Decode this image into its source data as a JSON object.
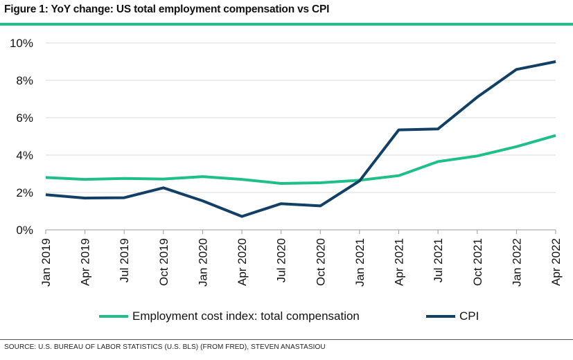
{
  "title": "Figure 1: YoY change: US total employment compensation vs CPI",
  "source": "SOURCE: U.S. BUREAU OF LABOR STATISTICS (U.S. BLS) (FROM FRED), STEVEN ANASTASIOU",
  "colors": {
    "accent": "#1fbf8a",
    "eci": "#1fbf8a",
    "cpi": "#123f66",
    "grid": "#d9d9d9"
  },
  "chart_data": {
    "type": "line",
    "title": "",
    "xlabel": "",
    "ylabel": "",
    "ylim": [
      0,
      10
    ],
    "yticks": [
      "0%",
      "2%",
      "4%",
      "6%",
      "8%",
      "10%"
    ],
    "grid": true,
    "legend": "bottom",
    "x": [
      "Jan 2019",
      "Apr 2019",
      "Jul 2019",
      "Oct 2019",
      "Jan 2020",
      "Apr 2020",
      "Jul 2020",
      "Oct 2020",
      "Jan 2021",
      "Apr 2021",
      "Jul 2021",
      "Oct 2021",
      "Jan 2022",
      "Apr 2022"
    ],
    "series": [
      {
        "name": "Employment cost index: total compensation",
        "color": "#1fbf8a",
        "values": [
          2.8,
          2.7,
          2.75,
          2.72,
          2.85,
          2.7,
          2.48,
          2.52,
          2.65,
          2.9,
          3.65,
          3.95,
          4.45,
          5.05
        ]
      },
      {
        "name": "CPI",
        "color": "#123f66",
        "values": [
          1.88,
          1.7,
          1.72,
          2.25,
          1.55,
          0.72,
          1.4,
          1.28,
          2.62,
          5.35,
          5.4,
          7.1,
          8.58,
          9.0
        ]
      }
    ]
  }
}
